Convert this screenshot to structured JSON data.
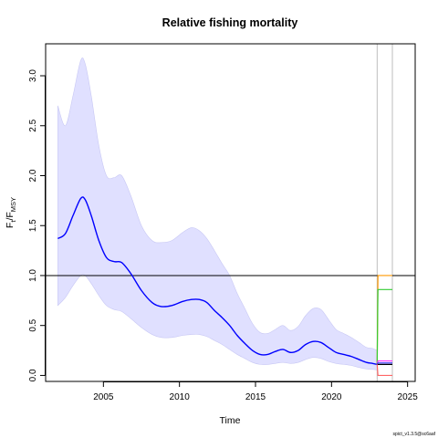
{
  "chart_data": {
    "type": "line",
    "title": "Relative fishing mortality",
    "xlabel": "Time",
    "ylabel": "F_t/F_MSY",
    "ylabel_parts": {
      "main": "F",
      "sub1": "t",
      "slash": "/F",
      "sub2": "MSY"
    },
    "credit": "spict_v1.3.5@sc6aaf",
    "xlim": [
      2001.2,
      2025.5
    ],
    "ylim": [
      -0.06,
      3.32
    ],
    "x_ticks": [
      2005,
      2010,
      2015,
      2020,
      2025
    ],
    "y_ticks": [
      0.0,
      0.5,
      1.0,
      1.5,
      2.0,
      2.5,
      3.0
    ],
    "y_tick_labels": [
      "0.0",
      "0.5",
      "1.0",
      "1.5",
      "2.0",
      "2.5",
      "3.0"
    ],
    "grid": false,
    "colors": {
      "estimate": "#0000ff",
      "ci_fill": "#e0e0ff",
      "ci_edge": "#c8c8f4",
      "reference": "#000000",
      "vline": "#bebebe",
      "scen_orange": "#ff9900",
      "scen_green": "#33cc33",
      "scen_magenta": "#ff33ff",
      "scen_blue": "#4444ff",
      "scen_black": "#000000",
      "scen_red": "#ff6666"
    },
    "reference_line_y": 1.0,
    "vertical_lines_x": [
      2023.0,
      2024.0
    ],
    "series": [
      {
        "role": "estimate",
        "x": [
          2002.0,
          2002.5,
          2003.0,
          2003.5,
          2003.8,
          2004.2,
          2004.7,
          2005.2,
          2005.7,
          2006.2,
          2006.8,
          2007.5,
          2008.2,
          2008.8,
          2009.5,
          2010.2,
          2010.8,
          2011.3,
          2011.8,
          2012.3,
          2012.8,
          2013.3,
          2013.8,
          2014.3,
          2014.8,
          2015.3,
          2015.8,
          2016.3,
          2016.8,
          2017.3,
          2017.8,
          2018.3,
          2018.8,
          2019.3,
          2019.8,
          2020.3,
          2020.8,
          2021.3,
          2021.8,
          2022.3,
          2022.7,
          2023.0
        ],
        "y": [
          1.37,
          1.42,
          1.6,
          1.77,
          1.76,
          1.6,
          1.35,
          1.18,
          1.14,
          1.13,
          1.02,
          0.85,
          0.73,
          0.69,
          0.7,
          0.74,
          0.76,
          0.76,
          0.73,
          0.65,
          0.58,
          0.5,
          0.4,
          0.32,
          0.25,
          0.21,
          0.21,
          0.24,
          0.26,
          0.23,
          0.25,
          0.31,
          0.34,
          0.33,
          0.28,
          0.23,
          0.21,
          0.19,
          0.16,
          0.13,
          0.12,
          0.11
        ]
      },
      {
        "role": "ci_upper",
        "x": [
          2002.0,
          2002.5,
          2003.0,
          2003.5,
          2003.8,
          2004.2,
          2004.7,
          2005.2,
          2005.7,
          2006.2,
          2006.8,
          2007.5,
          2008.2,
          2008.8,
          2009.5,
          2010.2,
          2010.8,
          2011.3,
          2011.8,
          2012.3,
          2012.8,
          2013.3,
          2013.8,
          2014.3,
          2014.8,
          2015.3,
          2015.8,
          2016.3,
          2016.8,
          2017.3,
          2017.8,
          2018.3,
          2018.8,
          2019.3,
          2019.8,
          2020.3,
          2020.8,
          2021.3,
          2021.8,
          2022.3,
          2022.7,
          2023.0
        ],
        "y": [
          2.7,
          2.5,
          2.8,
          3.15,
          3.12,
          2.8,
          2.3,
          2.0,
          1.98,
          2.0,
          1.8,
          1.5,
          1.35,
          1.33,
          1.35,
          1.43,
          1.48,
          1.45,
          1.37,
          1.25,
          1.12,
          1.0,
          0.82,
          0.67,
          0.52,
          0.43,
          0.42,
          0.46,
          0.5,
          0.45,
          0.49,
          0.6,
          0.67,
          0.66,
          0.56,
          0.46,
          0.42,
          0.38,
          0.33,
          0.28,
          0.27,
          0.25
        ]
      },
      {
        "role": "ci_lower",
        "x": [
          2002.0,
          2002.5,
          2003.0,
          2003.5,
          2003.8,
          2004.2,
          2004.7,
          2005.2,
          2005.7,
          2006.2,
          2006.8,
          2007.5,
          2008.2,
          2008.8,
          2009.5,
          2010.2,
          2010.8,
          2011.3,
          2011.8,
          2012.3,
          2012.8,
          2013.3,
          2013.8,
          2014.3,
          2014.8,
          2015.3,
          2015.8,
          2016.3,
          2016.8,
          2017.3,
          2017.8,
          2018.3,
          2018.8,
          2019.3,
          2019.8,
          2020.3,
          2020.8,
          2021.3,
          2021.8,
          2022.3,
          2022.7,
          2023.0
        ],
        "y": [
          0.7,
          0.78,
          0.9,
          1.0,
          1.0,
          0.92,
          0.8,
          0.7,
          0.66,
          0.64,
          0.57,
          0.48,
          0.41,
          0.38,
          0.38,
          0.4,
          0.41,
          0.41,
          0.39,
          0.35,
          0.31,
          0.26,
          0.21,
          0.17,
          0.13,
          0.11,
          0.11,
          0.12,
          0.13,
          0.12,
          0.13,
          0.16,
          0.18,
          0.17,
          0.14,
          0.12,
          0.11,
          0.1,
          0.08,
          0.065,
          0.06,
          0.055
        ]
      },
      {
        "role": "scenario",
        "color": "scen_orange",
        "x": [
          2023.0,
          2023.05,
          2024.0
        ],
        "y": [
          0.11,
          1.0,
          1.0
        ]
      },
      {
        "role": "scenario",
        "color": "scen_green",
        "x": [
          2023.0,
          2023.05,
          2024.0
        ],
        "y": [
          0.11,
          0.86,
          0.86
        ]
      },
      {
        "role": "scenario",
        "color": "scen_magenta",
        "x": [
          2023.0,
          2023.05,
          2024.0
        ],
        "y": [
          0.11,
          0.145,
          0.145
        ]
      },
      {
        "role": "scenario",
        "color": "scen_blue",
        "x": [
          2023.0,
          2023.05,
          2024.0
        ],
        "y": [
          0.11,
          0.125,
          0.125
        ]
      },
      {
        "role": "scenario",
        "color": "scen_black",
        "x": [
          2023.0,
          2023.05,
          2024.0
        ],
        "y": [
          0.11,
          0.11,
          0.11
        ]
      },
      {
        "role": "scenario",
        "color": "scen_red",
        "x": [
          2023.0,
          2023.05,
          2024.0
        ],
        "y": [
          0.11,
          0.0,
          0.0
        ]
      }
    ]
  }
}
